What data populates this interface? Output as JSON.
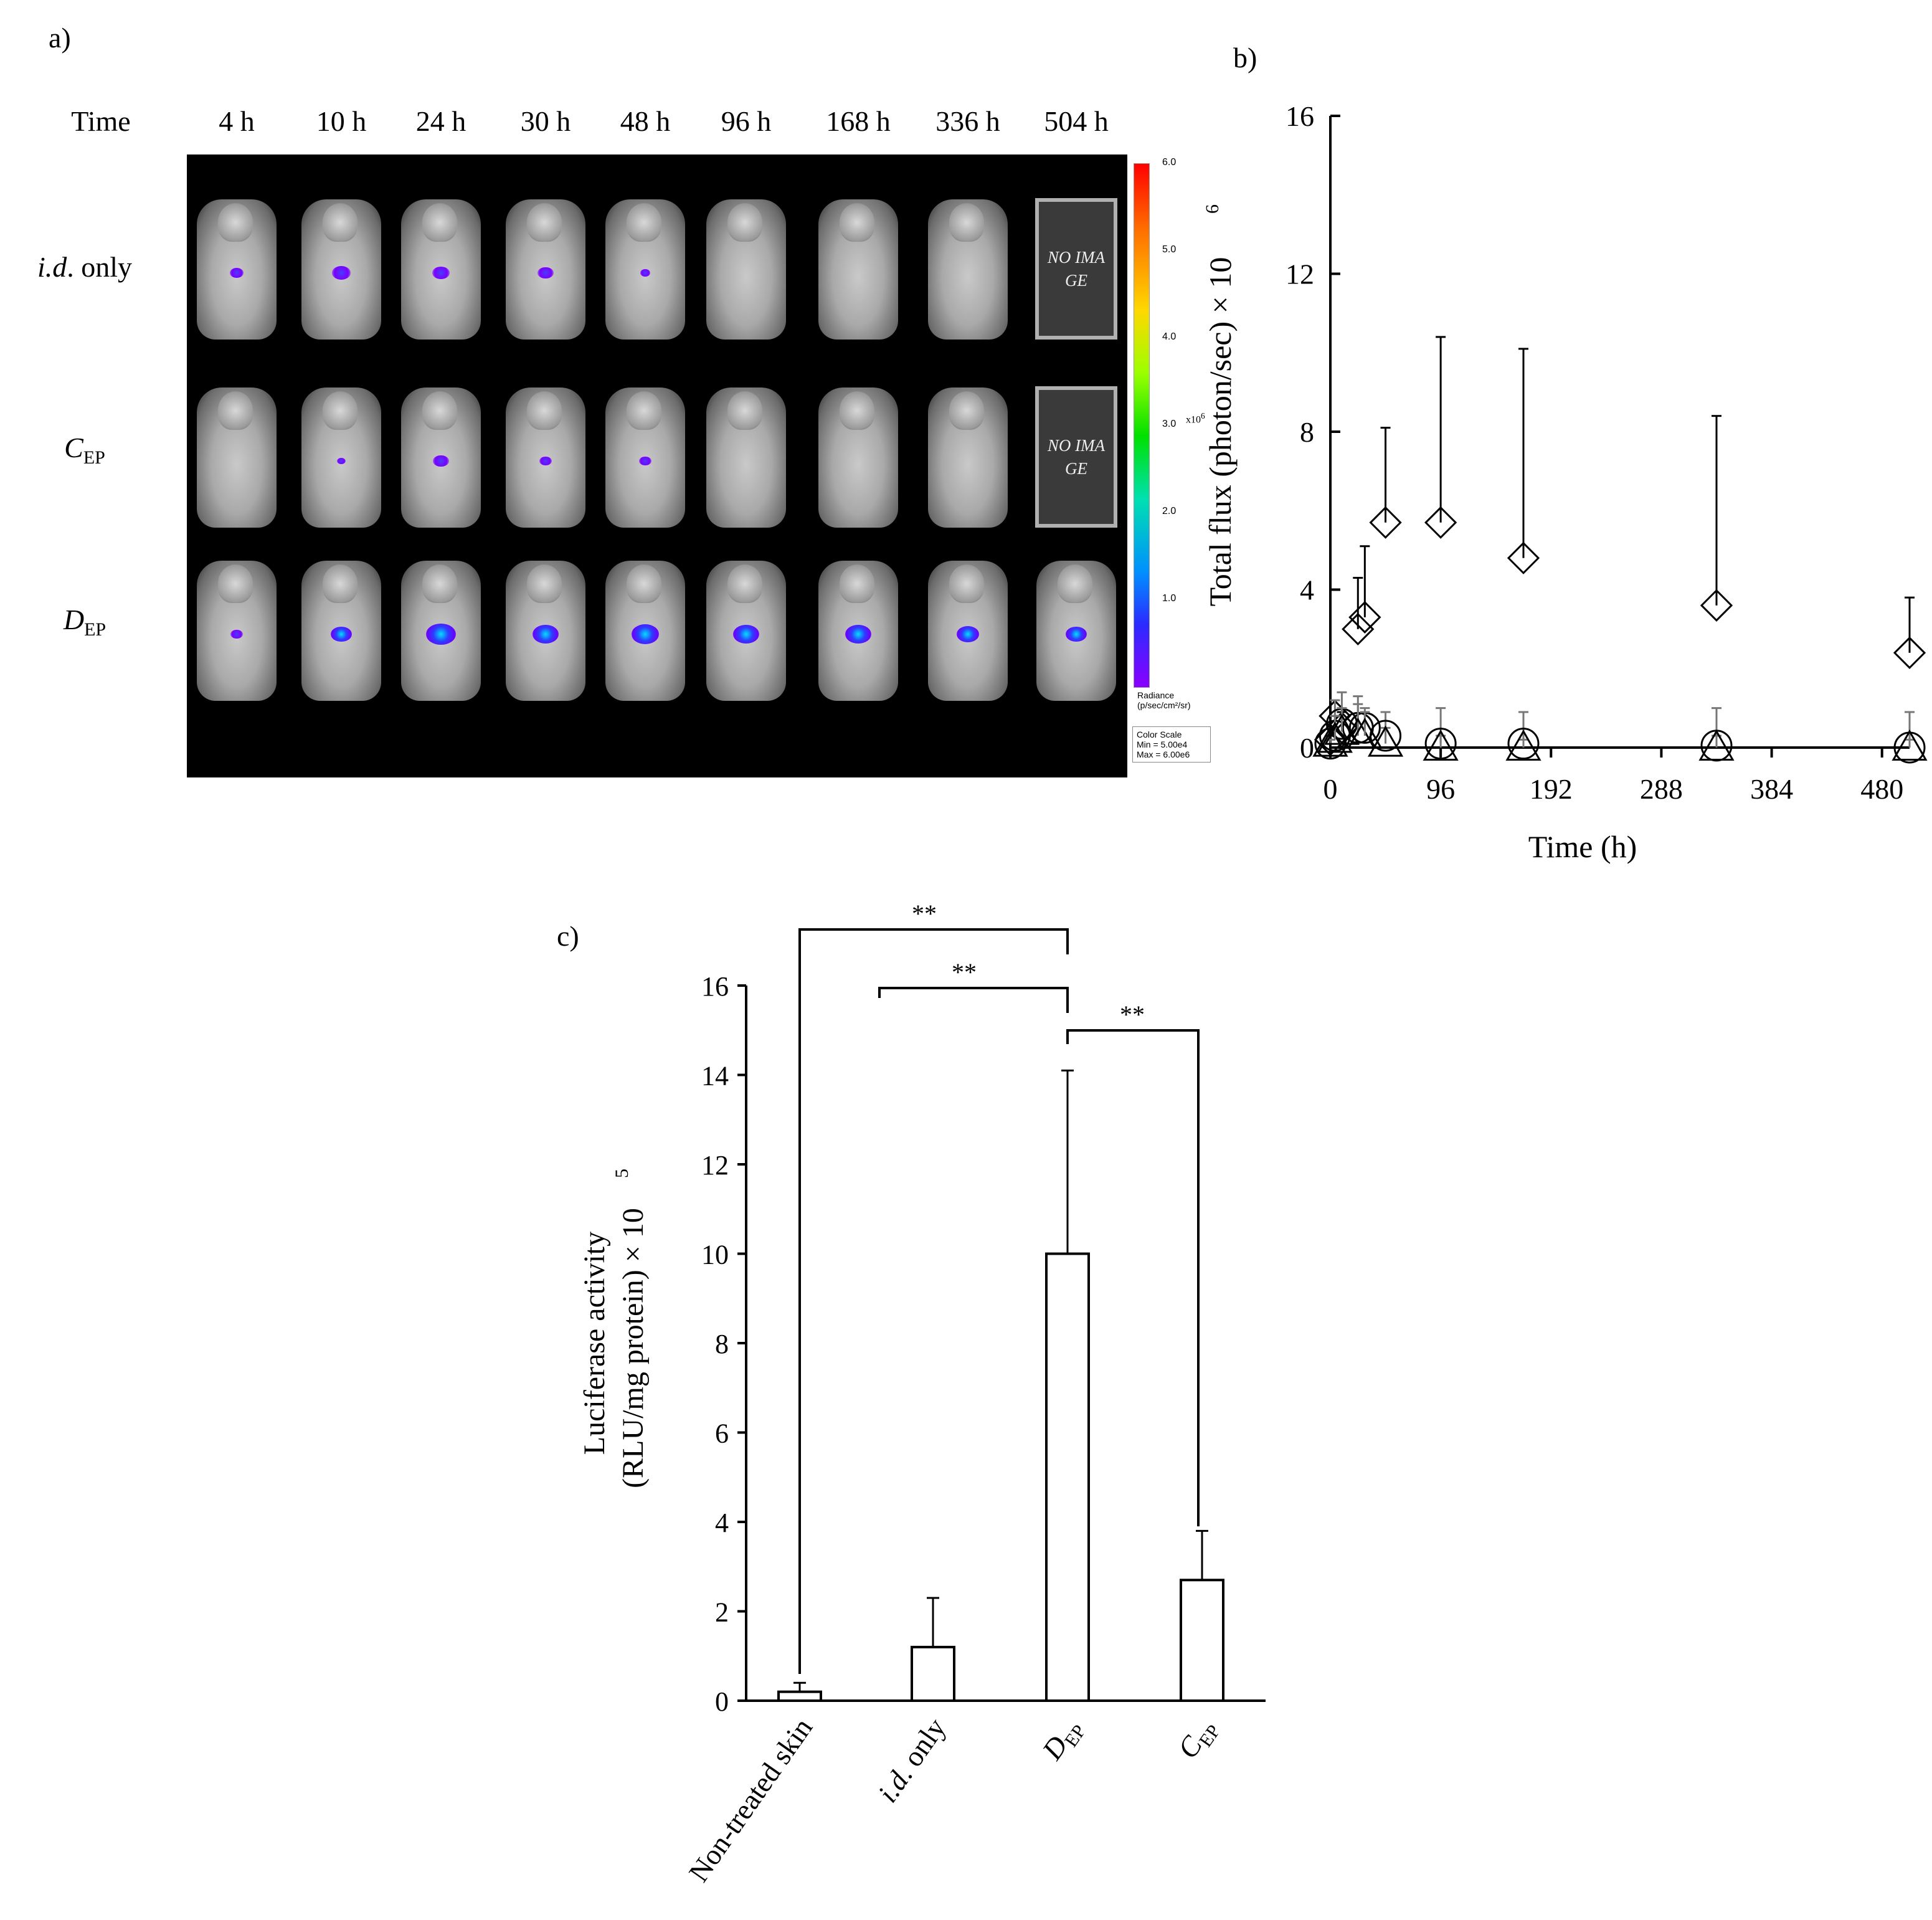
{
  "panel_a": {
    "label": "a)",
    "time_header": "Time",
    "times": [
      "4 h",
      "10 h",
      "24 h",
      "30 h",
      "48 h",
      "96 h",
      "168 h",
      "336 h",
      "504 h"
    ],
    "row_labels": {
      "id_only_em": "i.d",
      "id_only_rest": ". only",
      "cep_base": "C",
      "cep_sub": "EP",
      "dep_base": "D",
      "dep_sub": "EP"
    },
    "no_image_text": "NO IMA GE",
    "colorbar": {
      "ticks": [
        "6.0",
        "5.0",
        "4.0",
        "3.0",
        "2.0",
        "1.0"
      ],
      "multiplier_base": "x10",
      "multiplier_exp": "6",
      "radiance_label": "Radiance",
      "radiance_units": "(p/sec/cm²/sr)",
      "scale_title": "Color Scale",
      "scale_min": "Min = 5.00e4",
      "scale_max": "Max = 6.00e6"
    }
  },
  "panel_b": {
    "label": "b)",
    "xlabel": "Time (h)",
    "ylabel": "Total flux (photon/sec) × 10",
    "ylabel_exp": "6",
    "x_ticks": [
      "0",
      "96",
      "192",
      "288",
      "384",
      "480"
    ],
    "y_ticks": [
      "0",
      "4",
      "8",
      "12",
      "16"
    ]
  },
  "panel_c": {
    "label": "c)",
    "ylabel_line1": "Luciferase activity",
    "ylabel_line2": "(RLU/mg protein) × 10",
    "ylabel_exp": "5",
    "y_ticks": [
      "0",
      "2",
      "4",
      "6",
      "8",
      "10",
      "12",
      "14",
      "16"
    ],
    "sig_marker": "**",
    "categories": {
      "nontreated": "Non-treated skin",
      "idonly_em": "i.d",
      "idonly_rest": ". only",
      "dep_base": "D",
      "dep_sub": "EP",
      "cep_base": "C",
      "cep_sub": "EP"
    }
  },
  "chart_data": [
    {
      "type": "scatter",
      "xlabel": "Time (h)",
      "ylabel": "Total flux (photon/sec) × 10^6",
      "xlim": [
        0,
        504
      ],
      "ylim": [
        0,
        16
      ],
      "x_ticks": [
        0,
        96,
        192,
        288,
        384,
        480
      ],
      "y_ticks": [
        0,
        4,
        8,
        12,
        16
      ],
      "series": [
        {
          "marker": "diamond",
          "x": [
            0,
            4,
            10,
            24,
            30,
            48,
            96,
            168,
            336,
            504
          ],
          "y": [
            0.2,
            0.8,
            0.5,
            3.0,
            3.3,
            5.7,
            5.7,
            4.8,
            3.6,
            2.4
          ],
          "error_upper": [
            0.3,
            0.8,
            0.9,
            4.3,
            5.1,
            8.1,
            10.4,
            10.1,
            8.4,
            3.8
          ]
        },
        {
          "marker": "circle",
          "x": [
            0,
            4,
            10,
            24,
            30,
            48,
            96,
            168,
            336,
            504
          ],
          "y": [
            0.1,
            0.3,
            0.6,
            0.5,
            0.5,
            0.3,
            0.1,
            0.1,
            0.05,
            0.0
          ],
          "error_upper": [
            0.2,
            1.2,
            1.4,
            1.3,
            1.0,
            0.9,
            1.0,
            0.9,
            1.0,
            0.9
          ]
        },
        {
          "marker": "triangle",
          "x": [
            0,
            4,
            10,
            24,
            30,
            48,
            96,
            168,
            336,
            504
          ],
          "y": [
            0.1,
            0.2,
            0.4,
            0.3,
            0.3,
            0.1,
            0.0,
            0.0,
            0.0,
            0.0
          ],
          "error_upper": [
            0.2,
            0.8,
            1.0,
            1.1,
            0.9,
            0.5,
            0.3,
            0.2,
            0.3,
            0.2
          ]
        }
      ]
    },
    {
      "type": "bar",
      "categories": [
        "Non-treated skin",
        "i.d. only",
        "DEP",
        "CEP"
      ],
      "values": [
        0.2,
        1.2,
        10.0,
        2.7
      ],
      "error_upper": [
        0.4,
        2.3,
        14.1,
        3.8
      ],
      "ylabel": "Luciferase activity (RLU/mg protein) × 10^5",
      "ylim": [
        0,
        16
      ],
      "significance": [
        {
          "pair": [
            "Non-treated skin",
            "DEP"
          ],
          "label": "**"
        },
        {
          "pair": [
            "i.d. only",
            "DEP"
          ],
          "label": "**"
        },
        {
          "pair": [
            "DEP",
            "CEP"
          ],
          "label": "**"
        }
      ]
    }
  ]
}
